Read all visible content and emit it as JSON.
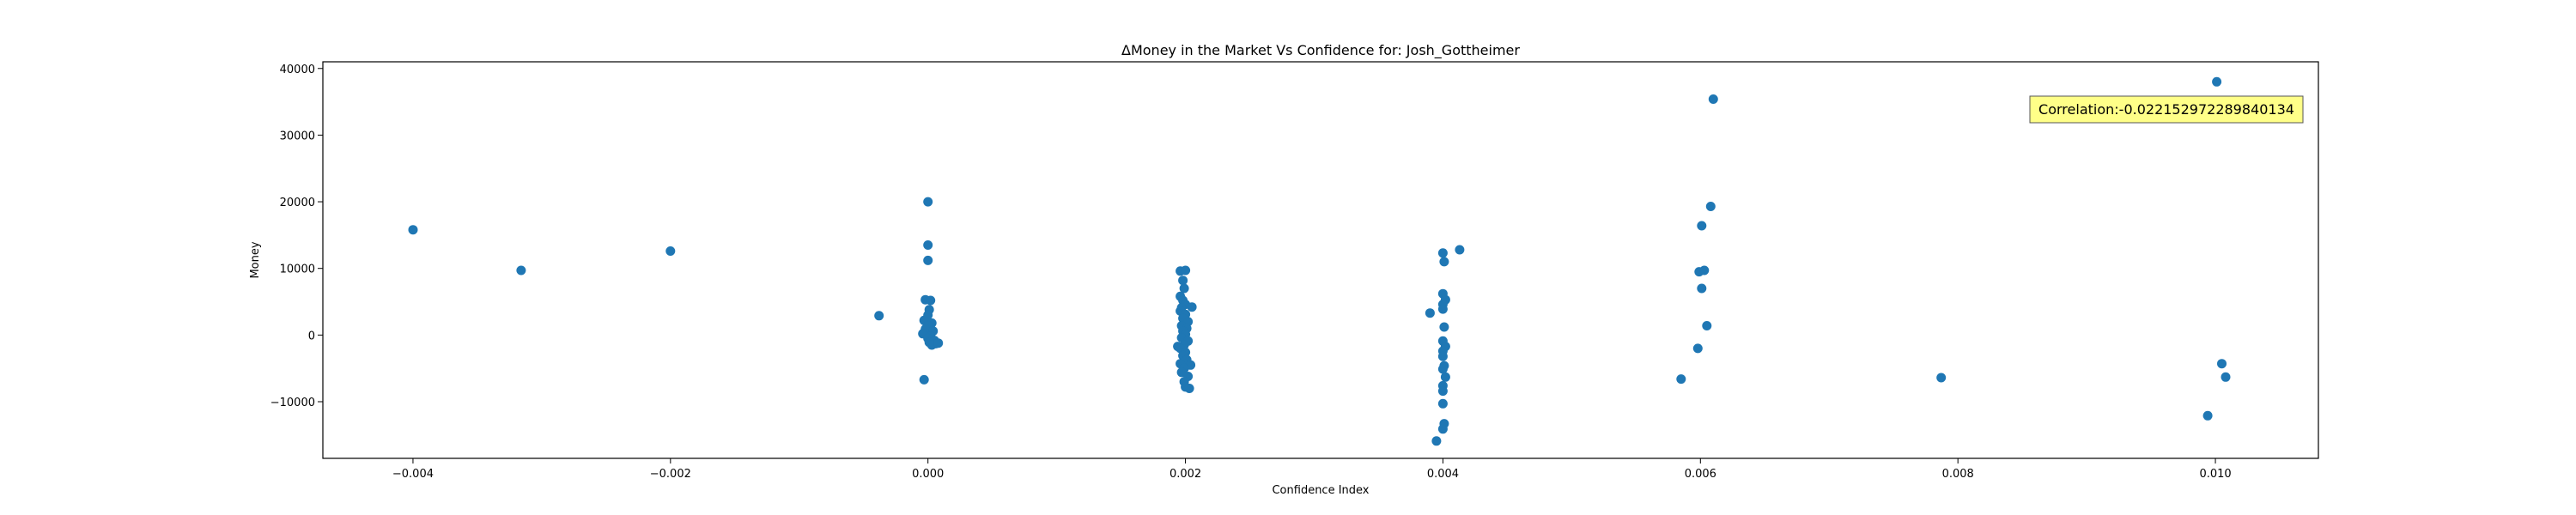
{
  "chart_data": {
    "type": "scatter",
    "title": "ΔMoney in the Market Vs Confidence for: Josh_Gottheimer",
    "xlabel": "Confidence Index",
    "ylabel": "Money",
    "xlim": [
      -0.0047,
      0.0108
    ],
    "ylim": [
      -18500,
      41000
    ],
    "xticks": [
      -0.004,
      -0.002,
      0.0,
      0.002,
      0.004,
      0.006,
      0.008,
      0.01
    ],
    "xtick_labels": [
      "−0.004",
      "−0.002",
      "0.000",
      "0.002",
      "0.004",
      "0.006",
      "0.008",
      "0.010"
    ],
    "yticks": [
      -10000,
      0,
      10000,
      20000,
      30000,
      40000
    ],
    "ytick_labels": [
      "−10000",
      "0",
      "10000",
      "20000",
      "30000",
      "40000"
    ],
    "grid": false,
    "annotation": {
      "text": "Correlation:-0.022152972289840134",
      "position": "top-right",
      "background": "#ffff88"
    },
    "series_color": "#1f77b4",
    "points": [
      [
        -0.004,
        15800
      ],
      [
        -0.00316,
        9700
      ],
      [
        -0.002,
        12600
      ],
      [
        -0.00038,
        2900
      ],
      [
        -3e-05,
        -6700
      ],
      [
        0.0,
        20000
      ],
      [
        0.0,
        13500
      ],
      [
        0.0,
        11200
      ],
      [
        -2e-05,
        5300
      ],
      [
        2e-05,
        5200
      ],
      [
        1e-05,
        3800
      ],
      [
        0.0,
        3000
      ],
      [
        -3e-05,
        2200
      ],
      [
        3e-05,
        1800
      ],
      [
        0.0,
        1400
      ],
      [
        -2e-05,
        900
      ],
      [
        4e-05,
        600
      ],
      [
        -4e-05,
        200
      ],
      [
        2e-05,
        -200
      ],
      [
        0.0,
        -500
      ],
      [
        5e-05,
        -800
      ],
      [
        1e-05,
        -1100
      ],
      [
        6e-05,
        -1300
      ],
      [
        3e-05,
        -1500
      ],
      [
        8e-05,
        -1200
      ],
      [
        0.00194,
        -1700
      ],
      [
        0.00196,
        9600
      ],
      [
        0.002,
        9700
      ],
      [
        0.00198,
        8200
      ],
      [
        0.00199,
        7000
      ],
      [
        0.00196,
        5800
      ],
      [
        0.00198,
        5200
      ],
      [
        0.002,
        4600
      ],
      [
        0.00197,
        4100
      ],
      [
        0.00205,
        4200
      ],
      [
        0.00196,
        3600
      ],
      [
        0.002,
        3100
      ],
      [
        0.00198,
        2500
      ],
      [
        0.00202,
        2000
      ],
      [
        0.00197,
        1400
      ],
      [
        0.00201,
        1000
      ],
      [
        0.00198,
        600
      ],
      [
        0.002,
        100
      ],
      [
        0.00197,
        -400
      ],
      [
        0.00202,
        -900
      ],
      [
        0.00199,
        -1500
      ],
      [
        0.00196,
        -2000
      ],
      [
        0.002,
        -2600
      ],
      [
        0.00198,
        -3100
      ],
      [
        0.00201,
        -3700
      ],
      [
        0.00196,
        -4300
      ],
      [
        0.00204,
        -4500
      ],
      [
        0.00199,
        -5000
      ],
      [
        0.00197,
        -5600
      ],
      [
        0.00202,
        -6200
      ],
      [
        0.00199,
        -7000
      ],
      [
        0.002,
        -7800
      ],
      [
        0.00203,
        -8000
      ],
      [
        0.0039,
        3300
      ],
      [
        0.004,
        12300
      ],
      [
        0.00413,
        12800
      ],
      [
        0.00401,
        11000
      ],
      [
        0.004,
        6200
      ],
      [
        0.00402,
        5300
      ],
      [
        0.004,
        4600
      ],
      [
        0.004,
        3900
      ],
      [
        0.00401,
        1200
      ],
      [
        0.004,
        -900
      ],
      [
        0.00402,
        -1700
      ],
      [
        0.004,
        -2400
      ],
      [
        0.004,
        -3200
      ],
      [
        0.00401,
        -4600
      ],
      [
        0.004,
        -5100
      ],
      [
        0.00402,
        -6300
      ],
      [
        0.004,
        -7600
      ],
      [
        0.004,
        -8400
      ],
      [
        0.004,
        -10300
      ],
      [
        0.00401,
        -13300
      ],
      [
        0.004,
        -14100
      ],
      [
        0.00395,
        -15900
      ],
      [
        0.00585,
        -6600
      ],
      [
        0.00598,
        -2000
      ],
      [
        0.00599,
        9500
      ],
      [
        0.00603,
        9700
      ],
      [
        0.00601,
        7000
      ],
      [
        0.00605,
        1400
      ],
      [
        0.00601,
        16400
      ],
      [
        0.00608,
        19300
      ],
      [
        0.0061,
        35400
      ],
      [
        0.00787,
        -6400
      ],
      [
        0.00994,
        -12100
      ],
      [
        0.01001,
        38000
      ],
      [
        0.01005,
        -4300
      ],
      [
        0.01008,
        -6300
      ]
    ]
  }
}
